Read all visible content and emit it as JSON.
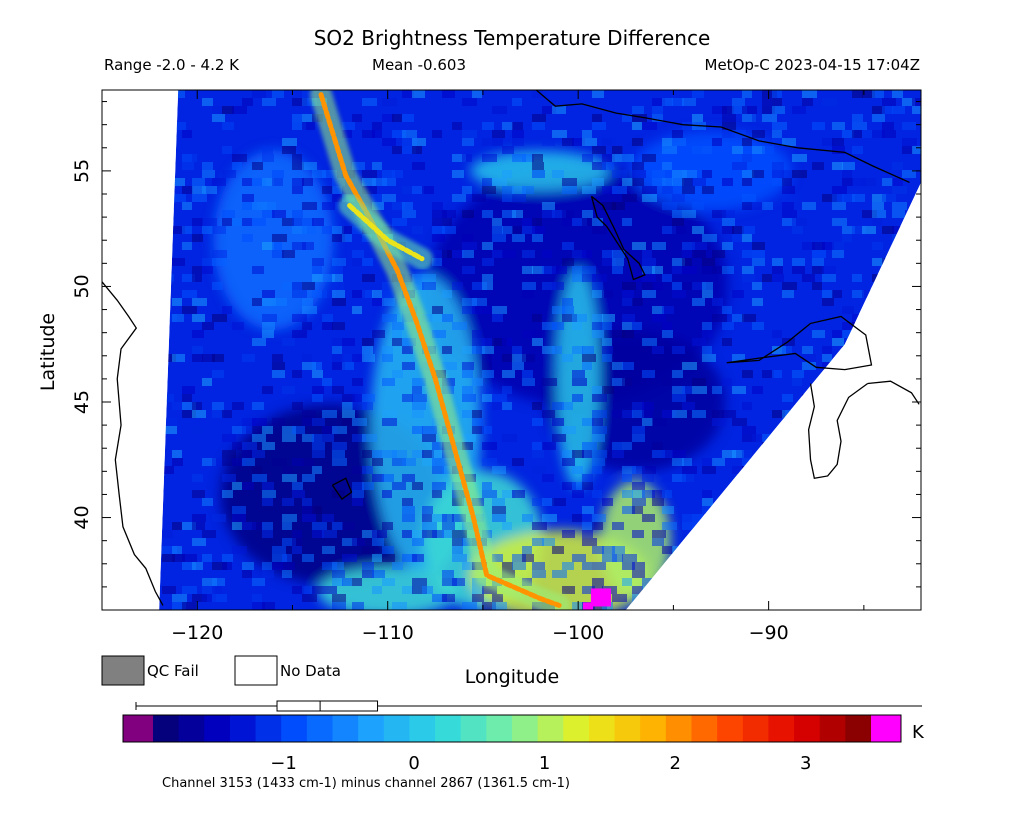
{
  "chart_data": {
    "type": "heatmap",
    "title": "SO2 Brightness Temperature Difference",
    "range_text": "Range -2.0 - 4.2 K",
    "mean_text": "Mean -0.603",
    "satellite_time": "MetOp-C 2023-04-15 17:04Z",
    "xlabel": "Longitude",
    "ylabel": "Latitude",
    "xlim": [
      -125,
      -82
    ],
    "ylim": [
      36,
      58.5
    ],
    "x_ticks": [
      -120,
      -110,
      -100,
      -90
    ],
    "x_tick_labels": [
      "−120",
      "−110",
      "−100",
      "−90"
    ],
    "y_ticks": [
      40,
      45,
      50,
      55
    ],
    "y_tick_labels": [
      "40",
      "45",
      "50",
      "55"
    ],
    "colorbar": {
      "range": [
        -2,
        3.5
      ],
      "ticks": [
        -1,
        0,
        1,
        2,
        3
      ],
      "tick_labels": [
        "−1",
        "0",
        "1",
        "2",
        "3"
      ],
      "unit": "K",
      "below_color": "#800080",
      "above_color": "#ff00ff",
      "stops": [
        "#06006a",
        "#0000c8",
        "#0050ff",
        "#1ca0ff",
        "#2ed8e0",
        "#7cf0a0",
        "#e8f020",
        "#ffb000",
        "#ff4800",
        "#e00000",
        "#780000"
      ],
      "boxplot": {
        "whisker_low": -2.0,
        "q1": -1.05,
        "median": -0.72,
        "q3": -0.28,
        "whisker_high": 4.2
      }
    },
    "legend": [
      {
        "label": "QC Fail",
        "color": "#808080"
      },
      {
        "label": "No Data",
        "color": "#ffffff"
      }
    ],
    "footnote": "Channel 3153 (1433 cm-1) minus channel 2867 (1361.5 cm-1)",
    "swath_edges": {
      "west": [
        [
          -121.0,
          58.5
        ],
        [
          -122.0,
          36
        ]
      ],
      "east": [
        [
          -82.0,
          54.5
        ],
        [
          -86.0,
          47.5
        ],
        [
          -92.5,
          41
        ],
        [
          -97.5,
          36
        ]
      ]
    },
    "features": [
      {
        "name": "SO2 plume",
        "points": [
          [
            -113.5,
            58.3
          ],
          [
            -112.2,
            54.8
          ],
          [
            -110.5,
            52.3
          ],
          [
            -109.5,
            50.7
          ],
          [
            -108.5,
            48.5
          ],
          [
            -107.5,
            46
          ],
          [
            -106.5,
            43
          ],
          [
            -105.5,
            40
          ],
          [
            -104.8,
            37.5
          ],
          [
            -102,
            36.5
          ],
          [
            -101,
            36.2
          ]
        ],
        "value": 2.0
      },
      {
        "name": "upper branch",
        "points": [
          [
            -112,
            53.5
          ],
          [
            -110,
            52.0
          ],
          [
            -108.2,
            51.2
          ]
        ],
        "value": 1.4
      },
      {
        "name": "hotspot",
        "points": [
          [
            -98.8,
            36.5
          ]
        ],
        "value": 3.6
      }
    ]
  }
}
